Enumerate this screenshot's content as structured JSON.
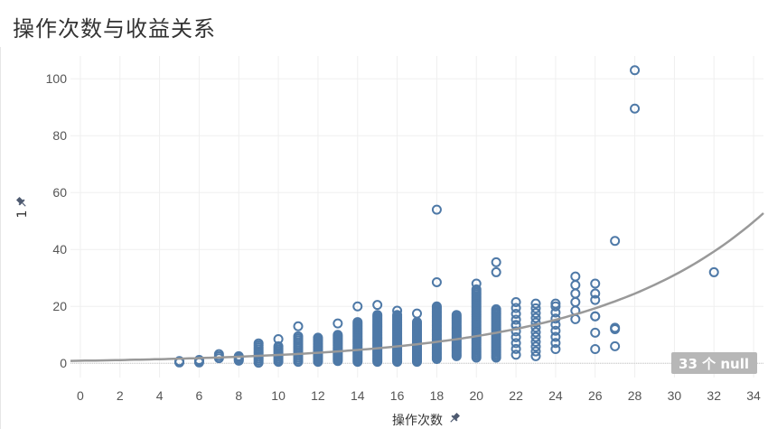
{
  "title": "操作次数与收益关系",
  "null_badge": "33 个 null",
  "chart_data": {
    "type": "scatter",
    "title": "操作次数与收益关系",
    "xlabel": "操作次数",
    "ylabel": "1",
    "xlim": [
      -0.5,
      34.5
    ],
    "ylim": [
      -5,
      108
    ],
    "xticks": [
      0,
      2,
      4,
      6,
      8,
      10,
      12,
      14,
      16,
      18,
      20,
      22,
      24,
      26,
      28,
      30,
      32,
      34
    ],
    "yticks": [
      0,
      20,
      40,
      60,
      80,
      100
    ],
    "grid": true,
    "trendline": {
      "type": "exponential",
      "a": 0.9,
      "b": 0.118
    },
    "colors": {
      "points": "#4e79a7",
      "trend": "#999999",
      "badge": "#b7b7b7"
    },
    "columns": [
      {
        "x": 5,
        "min": 0.3,
        "max": 0.8,
        "count": 2
      },
      {
        "x": 6,
        "min": 0.3,
        "max": 1.2,
        "count": 3
      },
      {
        "x": 7,
        "min": 1.8,
        "max": 3.2,
        "count": 3
      },
      {
        "x": 8,
        "min": 0.9,
        "max": 2.5,
        "count": 5
      },
      {
        "x": 9,
        "min": 0.2,
        "max": 7.0,
        "count": 11
      },
      {
        "x": 10,
        "min": 0.5,
        "max": 6.0,
        "count": 10
      },
      {
        "x": 11,
        "min": 0.5,
        "max": 9.5,
        "count": 14
      },
      {
        "x": 12,
        "min": 0.5,
        "max": 9.0,
        "count": 18
      },
      {
        "x": 13,
        "min": 0.8,
        "max": 10.0,
        "count": 22
      },
      {
        "x": 14,
        "min": 0.5,
        "max": 14.5,
        "count": 30
      },
      {
        "x": 15,
        "min": 0.5,
        "max": 17.0,
        "count": 36
      },
      {
        "x": 16,
        "min": 0.5,
        "max": 17.0,
        "count": 36
      },
      {
        "x": 17,
        "min": 0.5,
        "max": 14.5,
        "count": 30
      },
      {
        "x": 18,
        "min": 1.5,
        "max": 20.0,
        "count": 36
      },
      {
        "x": 19,
        "min": 2.5,
        "max": 17.0,
        "count": 30
      },
      {
        "x": 20,
        "min": 2.0,
        "max": 26.0,
        "count": 40
      },
      {
        "x": 21,
        "min": 2.0,
        "max": 19.0,
        "count": 30
      },
      {
        "x": 22,
        "min": 3.0,
        "max": 21.5,
        "count": 10
      },
      {
        "x": 23,
        "min": 2.5,
        "max": 21.0,
        "count": 12
      },
      {
        "x": 24,
        "min": 5.0,
        "max": 20.0,
        "count": 8
      },
      {
        "x": 25,
        "min": 15.5,
        "max": 30.5,
        "count": 6
      },
      {
        "x": 26,
        "min": 5.0,
        "max": 28.0,
        "count": 5
      }
    ],
    "points": [
      {
        "x": 5,
        "y": 0.4
      },
      {
        "x": 10,
        "y": 8.5
      },
      {
        "x": 11,
        "y": 13.0
      },
      {
        "x": 13,
        "y": 14.0
      },
      {
        "x": 14,
        "y": 20.0
      },
      {
        "x": 15,
        "y": 20.5
      },
      {
        "x": 16,
        "y": 18.5
      },
      {
        "x": 17,
        "y": 17.5
      },
      {
        "x": 18,
        "y": 28.5
      },
      {
        "x": 18,
        "y": 54.0
      },
      {
        "x": 20,
        "y": 28.0
      },
      {
        "x": 21,
        "y": 32.0
      },
      {
        "x": 21,
        "y": 35.5
      },
      {
        "x": 22,
        "y": 13.5
      },
      {
        "x": 24,
        "y": 21.0
      },
      {
        "x": 26,
        "y": 24.5
      },
      {
        "x": 26,
        "y": 16.5
      },
      {
        "x": 27,
        "y": 43.0
      },
      {
        "x": 27,
        "y": 12.0
      },
      {
        "x": 27,
        "y": 12.5
      },
      {
        "x": 27,
        "y": 6.0
      },
      {
        "x": 28,
        "y": 103.0
      },
      {
        "x": 28,
        "y": 89.5
      },
      {
        "x": 32,
        "y": 32.0
      }
    ]
  }
}
